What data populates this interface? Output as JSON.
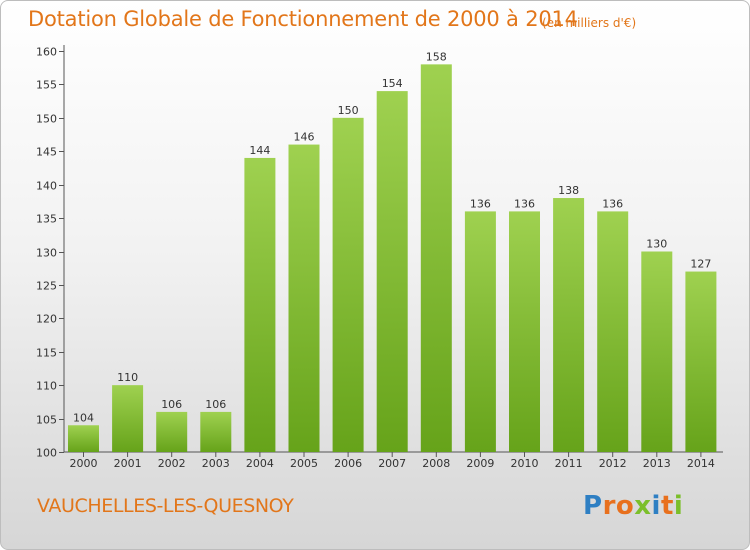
{
  "title": "Dotation Globale de Fonctionnement de 2000 à 2014",
  "subtitle": "(en milliers d'€)",
  "commune": "VAUCHELLES-LES-QUESNOY",
  "logo": {
    "text": "Proxiti",
    "letters": [
      "P",
      "r",
      "o",
      "x",
      "i",
      "t",
      "i"
    ],
    "colors": [
      "#2e7fc3",
      "#e8701d",
      "#e8701d",
      "#7bbf2a",
      "#2e7fc3",
      "#e8701d",
      "#7bbf2a"
    ]
  },
  "colors": {
    "title": "#e2761a",
    "bar_top": "#9fd150",
    "bar_bottom": "#66a31a",
    "label": "#333333"
  },
  "chart_data": {
    "type": "bar",
    "title": "Dotation Globale de Fonctionnement de 2000 à 2014",
    "subtitle": "(en milliers d'€)",
    "categories": [
      "2000",
      "2001",
      "2002",
      "2003",
      "2004",
      "2005",
      "2006",
      "2007",
      "2008",
      "2009",
      "2010",
      "2011",
      "2012",
      "2013",
      "2014"
    ],
    "values": [
      104,
      110,
      106,
      106,
      144,
      146,
      150,
      154,
      158,
      136,
      136,
      138,
      136,
      130,
      127
    ],
    "ylim": [
      100,
      160
    ],
    "yticks": [
      100,
      105,
      110,
      115,
      120,
      125,
      130,
      135,
      140,
      145,
      150,
      155,
      160
    ],
    "grid": false,
    "legend": "none"
  }
}
